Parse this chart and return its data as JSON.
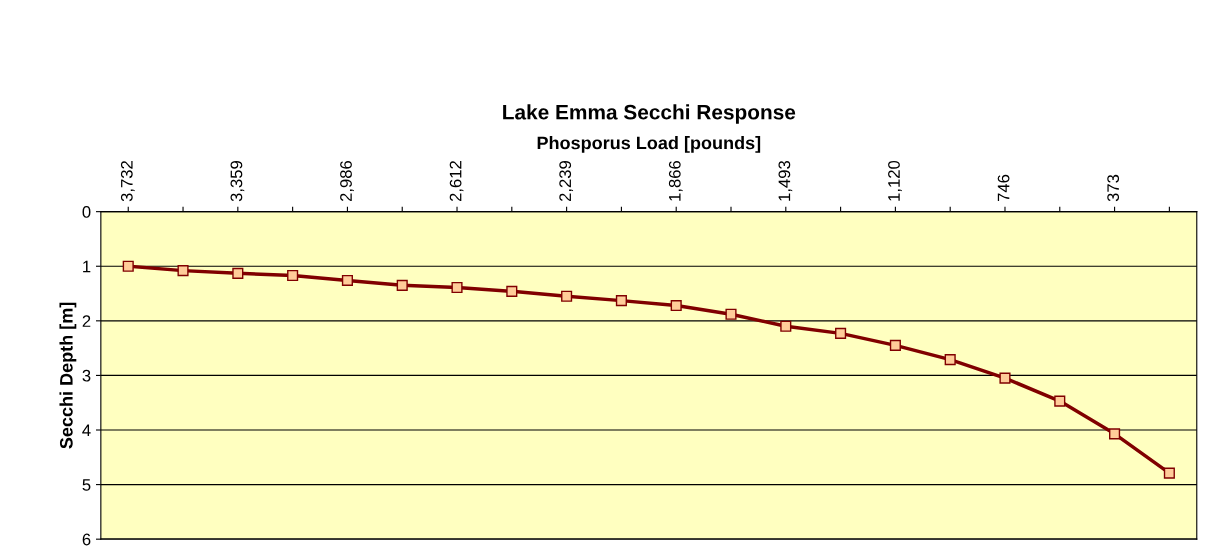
{
  "chart_data": {
    "type": "line",
    "title": "Lake Emma Secchi Response",
    "xlabel": "Phosporus Load [pounds]",
    "ylabel": "Secchi Depth [m]",
    "categories": [
      "3,732",
      null,
      "3,359",
      null,
      "2,986",
      null,
      "2,612",
      null,
      "2,239",
      null,
      "1,866",
      null,
      "1,493",
      null,
      "1,120",
      null,
      "746",
      null,
      "373",
      null
    ],
    "series": [
      {
        "color": "#800000",
        "values": [
          1.0,
          1.08,
          1.13,
          1.17,
          1.26,
          1.35,
          1.39,
          1.46,
          1.55,
          1.63,
          1.72,
          1.88,
          2.1,
          2.23,
          2.45,
          2.71,
          3.05,
          3.47,
          4.07,
          4.79
        ]
      }
    ],
    "ylim": [
      6,
      0
    ],
    "yticks": [
      0,
      1,
      2,
      3,
      4,
      5,
      6
    ],
    "grid": "y",
    "marker": "square",
    "line_style": "solid"
  }
}
